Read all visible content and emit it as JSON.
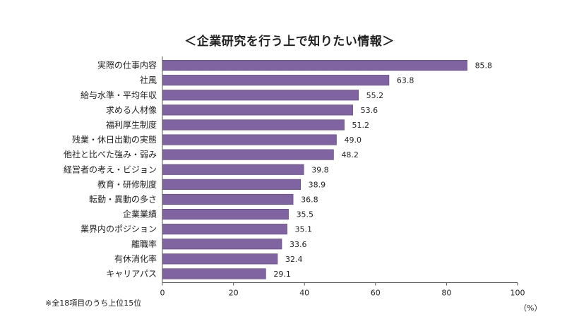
{
  "chart_data": {
    "type": "bar",
    "orientation": "horizontal",
    "title": "＜企業研究を行う上で知りたい情報＞",
    "categories": [
      "実際の仕事内容",
      "社風",
      "給与水準・平均年収",
      "求める人材像",
      "福利厚生制度",
      "残業・休日出勤の実態",
      "他社と比べた強み・弱み",
      "経営者の考え・ビジョン",
      "教育・研修制度",
      "転勤・異動の多さ",
      "企業業績",
      "業界内のポジション",
      "離職率",
      "有休消化率",
      "キャリアパス"
    ],
    "values": [
      85.8,
      63.8,
      55.2,
      53.6,
      51.2,
      49.0,
      48.2,
      39.8,
      38.9,
      36.8,
      35.5,
      35.1,
      33.6,
      32.4,
      29.1
    ],
    "value_labels": [
      "85.8",
      "63.8",
      "55.2",
      "53.6",
      "51.2",
      "49.0",
      "48.2",
      "39.8",
      "38.9",
      "36.8",
      "35.5",
      "35.1",
      "33.6",
      "32.4",
      "29.1"
    ],
    "xlim": [
      0,
      100
    ],
    "xticks": [
      0,
      20,
      40,
      60,
      80,
      100
    ],
    "unit": "（%）",
    "note": "※全18項目のうち上位15位",
    "bar_color": "#8064a2",
    "bar_edge_color": "#5b4478",
    "grid": false
  }
}
